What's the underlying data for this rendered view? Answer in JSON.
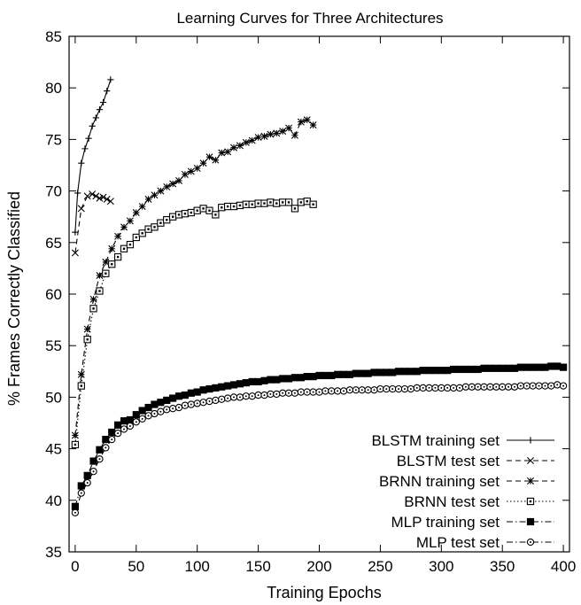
{
  "chart_data": {
    "type": "line",
    "title": "Learning Curves for Three Architectures",
    "xlabel": "Training Epochs",
    "ylabel": "% Frames Correctly Classified",
    "xlim": [
      -5,
      405
    ],
    "ylim": [
      35,
      85
    ],
    "xticks": [
      0,
      50,
      100,
      150,
      200,
      250,
      300,
      350,
      400
    ],
    "yticks": [
      35,
      40,
      45,
      50,
      55,
      60,
      65,
      70,
      75,
      80,
      85
    ],
    "grid": false,
    "legend_position": "bottom-right",
    "series": [
      {
        "name": "BLSTM training set",
        "style": "solid",
        "marker": "plus",
        "x": [
          0,
          2,
          5,
          8,
          11,
          14,
          17,
          20,
          23,
          26,
          29
        ],
        "y": [
          66.0,
          69.8,
          72.7,
          74.1,
          75.1,
          76.3,
          77.1,
          77.9,
          78.6,
          79.7,
          80.8
        ]
      },
      {
        "name": "BLSTM test set",
        "style": "dashed",
        "marker": "x",
        "x": [
          0,
          5,
          10,
          14,
          17,
          20,
          23,
          26,
          29
        ],
        "y": [
          64.0,
          68.3,
          69.5,
          69.7,
          69.5,
          69.3,
          69.4,
          69.2,
          69.0
        ],
        "connect_from": [
          0
        ]
      },
      {
        "name": "BRNN training set",
        "style": "dashed",
        "marker": "asterisk",
        "x": [
          0,
          5,
          10,
          15,
          20,
          25,
          30,
          35,
          40,
          45,
          50,
          55,
          60,
          65,
          70,
          75,
          80,
          85,
          90,
          95,
          100,
          105,
          110,
          115,
          120,
          125,
          130,
          135,
          140,
          145,
          150,
          155,
          160,
          165,
          170,
          175,
          180,
          185,
          190,
          195
        ],
        "y": [
          46.3,
          52.2,
          56.6,
          59.5,
          61.8,
          63.1,
          64.4,
          65.6,
          66.5,
          67.1,
          67.9,
          68.5,
          69.2,
          69.6,
          70.0,
          70.4,
          70.7,
          71.0,
          71.6,
          71.9,
          72.2,
          72.7,
          73.3,
          73.0,
          73.7,
          73.8,
          74.2,
          74.4,
          74.7,
          74.9,
          75.2,
          75.3,
          75.5,
          75.6,
          75.8,
          76.1,
          75.4,
          76.7,
          76.9,
          76.4
        ]
      },
      {
        "name": "BRNN test set",
        "style": "dotted",
        "marker": "square-open",
        "x": [
          0,
          5,
          10,
          15,
          20,
          25,
          30,
          35,
          40,
          45,
          50,
          55,
          60,
          65,
          70,
          75,
          80,
          85,
          90,
          95,
          100,
          105,
          110,
          115,
          120,
          125,
          130,
          135,
          140,
          145,
          150,
          155,
          160,
          165,
          170,
          175,
          180,
          185,
          190,
          195
        ],
        "y": [
          45.4,
          51.1,
          55.6,
          58.6,
          60.3,
          62.0,
          62.9,
          63.6,
          64.4,
          64.8,
          65.5,
          65.9,
          66.3,
          66.5,
          66.9,
          67.2,
          67.5,
          67.7,
          67.8,
          67.9,
          68.1,
          68.3,
          68.1,
          67.7,
          68.4,
          68.5,
          68.5,
          68.6,
          68.7,
          68.7,
          68.8,
          68.8,
          68.9,
          68.8,
          68.9,
          68.9,
          68.3,
          68.9,
          69.0,
          68.7
        ]
      },
      {
        "name": "MLP training set",
        "style": "dashdot",
        "marker": "square-filled",
        "x": [
          0,
          5,
          10,
          15,
          20,
          25,
          30,
          35,
          40,
          45,
          50,
          55,
          60,
          65,
          70,
          75,
          80,
          85,
          90,
          95,
          100,
          105,
          110,
          115,
          120,
          125,
          130,
          135,
          140,
          145,
          150,
          155,
          160,
          165,
          170,
          175,
          180,
          185,
          190,
          195,
          200,
          205,
          210,
          215,
          220,
          225,
          230,
          235,
          240,
          245,
          250,
          255,
          260,
          265,
          270,
          275,
          280,
          285,
          290,
          295,
          300,
          305,
          310,
          315,
          320,
          325,
          330,
          335,
          340,
          345,
          350,
          355,
          360,
          365,
          370,
          375,
          380,
          385,
          390,
          395,
          400
        ],
        "y": [
          39.4,
          41.4,
          42.4,
          43.8,
          44.9,
          45.9,
          46.6,
          47.3,
          47.7,
          47.8,
          48.3,
          48.7,
          49.0,
          49.3,
          49.5,
          49.7,
          49.9,
          50.1,
          50.2,
          50.4,
          50.5,
          50.7,
          50.8,
          50.9,
          51.0,
          51.1,
          51.2,
          51.3,
          51.4,
          51.5,
          51.5,
          51.6,
          51.7,
          51.7,
          51.8,
          51.8,
          51.9,
          51.9,
          52.0,
          52.0,
          52.1,
          52.1,
          52.1,
          52.2,
          52.2,
          52.2,
          52.3,
          52.3,
          52.3,
          52.4,
          52.4,
          52.4,
          52.4,
          52.5,
          52.5,
          52.5,
          52.5,
          52.6,
          52.6,
          52.6,
          52.6,
          52.6,
          52.7,
          52.7,
          52.7,
          52.7,
          52.7,
          52.8,
          52.8,
          52.8,
          52.8,
          52.8,
          52.8,
          52.9,
          52.9,
          52.9,
          52.9,
          52.9,
          53.0,
          53.0,
          52.9
        ]
      },
      {
        "name": "MLP test set",
        "style": "dashdot",
        "marker": "circle-open",
        "x": [
          0,
          5,
          10,
          15,
          20,
          25,
          30,
          35,
          40,
          45,
          50,
          55,
          60,
          65,
          70,
          75,
          80,
          85,
          90,
          95,
          100,
          105,
          110,
          115,
          120,
          125,
          130,
          135,
          140,
          145,
          150,
          155,
          160,
          165,
          170,
          175,
          180,
          185,
          190,
          195,
          200,
          205,
          210,
          215,
          220,
          225,
          230,
          235,
          240,
          245,
          250,
          255,
          260,
          265,
          270,
          275,
          280,
          285,
          290,
          295,
          300,
          305,
          310,
          315,
          320,
          325,
          330,
          335,
          340,
          345,
          350,
          355,
          360,
          365,
          370,
          375,
          380,
          385,
          390,
          395,
          400
        ],
        "y": [
          38.8,
          40.7,
          41.7,
          42.8,
          44.0,
          45.1,
          45.9,
          46.5,
          46.9,
          47.2,
          47.6,
          47.9,
          48.2,
          48.4,
          48.6,
          48.8,
          48.9,
          49.0,
          49.2,
          49.3,
          49.4,
          49.5,
          49.6,
          49.7,
          49.8,
          49.9,
          50.0,
          50.0,
          50.1,
          50.1,
          50.2,
          50.2,
          50.3,
          50.3,
          50.4,
          50.4,
          50.4,
          50.5,
          50.5,
          50.5,
          50.5,
          50.6,
          50.6,
          50.6,
          50.6,
          50.7,
          50.7,
          50.7,
          50.7,
          50.7,
          50.8,
          50.8,
          50.8,
          50.8,
          50.8,
          50.8,
          50.9,
          50.9,
          50.9,
          50.9,
          50.9,
          50.9,
          50.9,
          50.9,
          51.0,
          51.0,
          51.0,
          51.0,
          51.0,
          51.0,
          51.0,
          51.0,
          51.0,
          51.1,
          51.1,
          51.1,
          51.1,
          51.1,
          51.1,
          51.2,
          51.1
        ]
      }
    ]
  }
}
